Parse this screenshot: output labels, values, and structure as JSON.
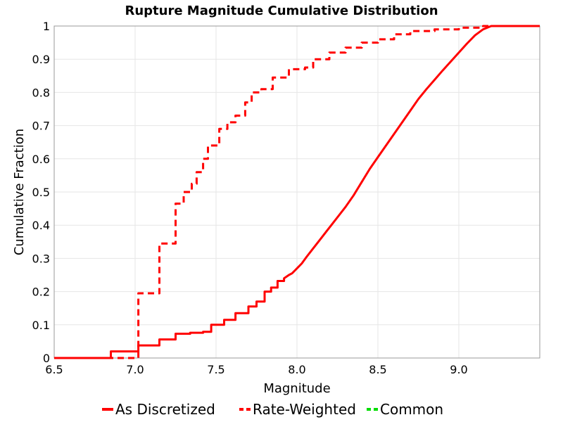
{
  "chart_data": {
    "type": "line",
    "title": "Rupture Magnitude Cumulative Distribution",
    "xlabel": "Magnitude",
    "ylabel": "Cumulative Fraction",
    "xlim": [
      6.5,
      9.5
    ],
    "ylim": [
      0,
      1
    ],
    "x_ticks": [
      "6.5",
      "7.0",
      "7.5",
      "8.0",
      "8.5",
      "9.0"
    ],
    "y_ticks": [
      "0",
      "0.1",
      "0.2",
      "0.3",
      "0.4",
      "0.5",
      "0.6",
      "0.7",
      "0.8",
      "0.9",
      "1"
    ],
    "grid": true,
    "legend_position": "bottom",
    "series": [
      {
        "name": "As Discretized",
        "color": "#ff0000",
        "dash": "solid",
        "points": [
          [
            6.5,
            0
          ],
          [
            6.85,
            0
          ],
          [
            6.85,
            0.02
          ],
          [
            7.02,
            0.02
          ],
          [
            7.02,
            0.038
          ],
          [
            7.15,
            0.038
          ],
          [
            7.15,
            0.056
          ],
          [
            7.25,
            0.056
          ],
          [
            7.25,
            0.073
          ],
          [
            7.34,
            0.073
          ],
          [
            7.34,
            0.076
          ],
          [
            7.42,
            0.076
          ],
          [
            7.42,
            0.079
          ],
          [
            7.47,
            0.079
          ],
          [
            7.47,
            0.1
          ],
          [
            7.55,
            0.1
          ],
          [
            7.55,
            0.115
          ],
          [
            7.62,
            0.115
          ],
          [
            7.62,
            0.135
          ],
          [
            7.7,
            0.135
          ],
          [
            7.7,
            0.155
          ],
          [
            7.75,
            0.155
          ],
          [
            7.75,
            0.17
          ],
          [
            7.8,
            0.17
          ],
          [
            7.8,
            0.2
          ],
          [
            7.84,
            0.2
          ],
          [
            7.84,
            0.212
          ],
          [
            7.88,
            0.212
          ],
          [
            7.88,
            0.232
          ],
          [
            7.92,
            0.232
          ],
          [
            7.92,
            0.24
          ],
          [
            7.95,
            0.25
          ],
          [
            7.97,
            0.255
          ],
          [
            8.0,
            0.27
          ],
          [
            8.03,
            0.285
          ],
          [
            8.06,
            0.305
          ],
          [
            8.1,
            0.33
          ],
          [
            8.14,
            0.355
          ],
          [
            8.18,
            0.38
          ],
          [
            8.22,
            0.405
          ],
          [
            8.26,
            0.43
          ],
          [
            8.3,
            0.455
          ],
          [
            8.35,
            0.49
          ],
          [
            8.4,
            0.53
          ],
          [
            8.45,
            0.57
          ],
          [
            8.5,
            0.605
          ],
          [
            8.55,
            0.64
          ],
          [
            8.6,
            0.675
          ],
          [
            8.65,
            0.71
          ],
          [
            8.7,
            0.745
          ],
          [
            8.75,
            0.78
          ],
          [
            8.8,
            0.81
          ],
          [
            8.85,
            0.838
          ],
          [
            8.9,
            0.866
          ],
          [
            8.95,
            0.893
          ],
          [
            9.0,
            0.92
          ],
          [
            9.05,
            0.947
          ],
          [
            9.1,
            0.972
          ],
          [
            9.15,
            0.99
          ],
          [
            9.2,
            1.0
          ],
          [
            9.5,
            1.0
          ]
        ]
      },
      {
        "name": "Rate-Weighted",
        "color": "#ff0000",
        "dash": "dashed",
        "points": [
          [
            6.5,
            0
          ],
          [
            7.02,
            0
          ],
          [
            7.02,
            0.195
          ],
          [
            7.15,
            0.195
          ],
          [
            7.15,
            0.345
          ],
          [
            7.25,
            0.345
          ],
          [
            7.25,
            0.465
          ],
          [
            7.3,
            0.465
          ],
          [
            7.3,
            0.5
          ],
          [
            7.35,
            0.5
          ],
          [
            7.35,
            0.525
          ],
          [
            7.38,
            0.525
          ],
          [
            7.38,
            0.56
          ],
          [
            7.42,
            0.56
          ],
          [
            7.42,
            0.6
          ],
          [
            7.45,
            0.6
          ],
          [
            7.45,
            0.64
          ],
          [
            7.52,
            0.64
          ],
          [
            7.52,
            0.69
          ],
          [
            7.57,
            0.69
          ],
          [
            7.57,
            0.71
          ],
          [
            7.62,
            0.71
          ],
          [
            7.62,
            0.73
          ],
          [
            7.68,
            0.73
          ],
          [
            7.68,
            0.77
          ],
          [
            7.72,
            0.77
          ],
          [
            7.72,
            0.8
          ],
          [
            7.78,
            0.8
          ],
          [
            7.78,
            0.81
          ],
          [
            7.85,
            0.81
          ],
          [
            7.85,
            0.845
          ],
          [
            7.95,
            0.845
          ],
          [
            7.95,
            0.87
          ],
          [
            8.05,
            0.87
          ],
          [
            8.05,
            0.875
          ],
          [
            8.1,
            0.875
          ],
          [
            8.1,
            0.9
          ],
          [
            8.2,
            0.9
          ],
          [
            8.2,
            0.92
          ],
          [
            8.3,
            0.92
          ],
          [
            8.3,
            0.935
          ],
          [
            8.4,
            0.935
          ],
          [
            8.4,
            0.95
          ],
          [
            8.5,
            0.95
          ],
          [
            8.5,
            0.96
          ],
          [
            8.6,
            0.96
          ],
          [
            8.6,
            0.975
          ],
          [
            8.7,
            0.975
          ],
          [
            8.7,
            0.985
          ],
          [
            8.85,
            0.985
          ],
          [
            8.85,
            0.99
          ],
          [
            9.0,
            0.99
          ],
          [
            9.0,
            0.995
          ],
          [
            9.15,
            0.995
          ],
          [
            9.15,
            1.0
          ],
          [
            9.5,
            1.0
          ]
        ]
      },
      {
        "name": "Common",
        "color": "#00dd00",
        "dash": "dashed",
        "points": []
      }
    ]
  }
}
